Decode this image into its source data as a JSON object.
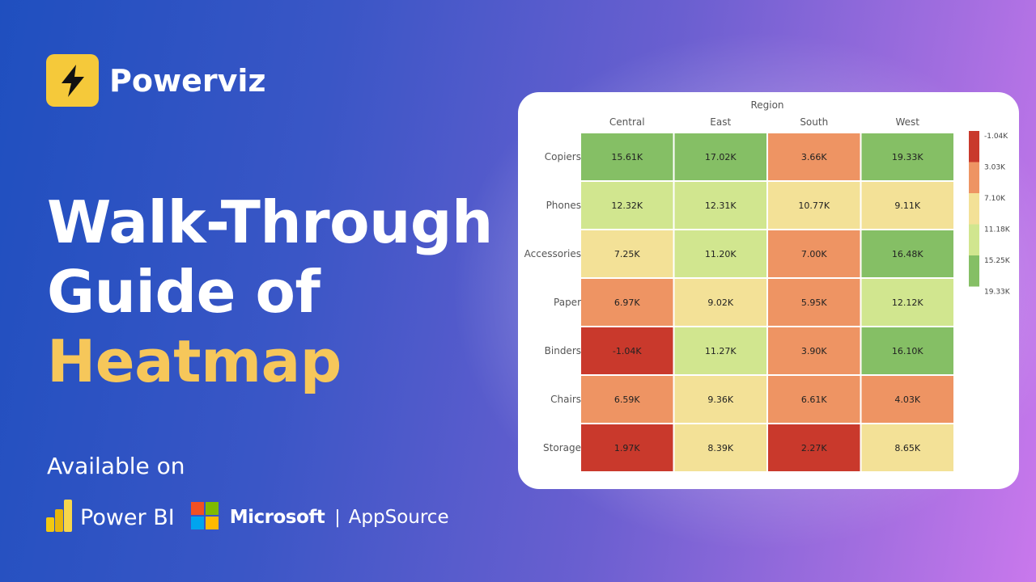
{
  "brand": {
    "name": "Powerviz"
  },
  "headline": {
    "line1": "Walk-Through",
    "line2": "Guide of",
    "line3": "Heatmap"
  },
  "available": {
    "label": "Available on"
  },
  "platforms": {
    "powerbi": "Power BI",
    "microsoft": "Microsoft",
    "separator": "|",
    "appsource": "AppSource"
  },
  "colors": {
    "accent": "#f6c75a",
    "scale": [
      "#c9392c",
      "#ee9463",
      "#f3e197",
      "#d1e68f",
      "#85bf65"
    ]
  },
  "chart_data": {
    "type": "heatmap",
    "xlabel": "Region",
    "columns": [
      "Central",
      "East",
      "South",
      "West"
    ],
    "rows": [
      "Copiers",
      "Phones",
      "Accessories",
      "Paper",
      "Binders",
      "Chairs",
      "Storage"
    ],
    "values": [
      [
        15.61,
        17.02,
        3.66,
        19.33
      ],
      [
        12.32,
        12.31,
        10.77,
        9.11
      ],
      [
        7.25,
        11.2,
        7.0,
        16.48
      ],
      [
        6.97,
        9.02,
        5.95,
        12.12
      ],
      [
        -1.04,
        11.27,
        3.9,
        16.1
      ],
      [
        6.59,
        9.36,
        6.61,
        4.03
      ],
      [
        1.97,
        8.39,
        2.27,
        8.65
      ]
    ],
    "labels": [
      [
        "15.61K",
        "17.02K",
        "3.66K",
        "19.33K"
      ],
      [
        "12.32K",
        "12.31K",
        "10.77K",
        "9.11K"
      ],
      [
        "7.25K",
        "11.20K",
        "7.00K",
        "16.48K"
      ],
      [
        "6.97K",
        "9.02K",
        "5.95K",
        "12.12K"
      ],
      [
        "-1.04K",
        "11.27K",
        "3.90K",
        "16.10K"
      ],
      [
        "6.59K",
        "9.36K",
        "6.61K",
        "4.03K"
      ],
      [
        "1.97K",
        "8.39K",
        "2.27K",
        "8.65K"
      ]
    ],
    "unit": "K",
    "legend": {
      "ticks": [
        "-1.04K",
        "3.03K",
        "7.10K",
        "11.18K",
        "15.25K",
        "19.33K"
      ],
      "breaks": [
        -1.04,
        3.03,
        7.1,
        11.18,
        15.25,
        19.33
      ],
      "placement": "right"
    }
  }
}
